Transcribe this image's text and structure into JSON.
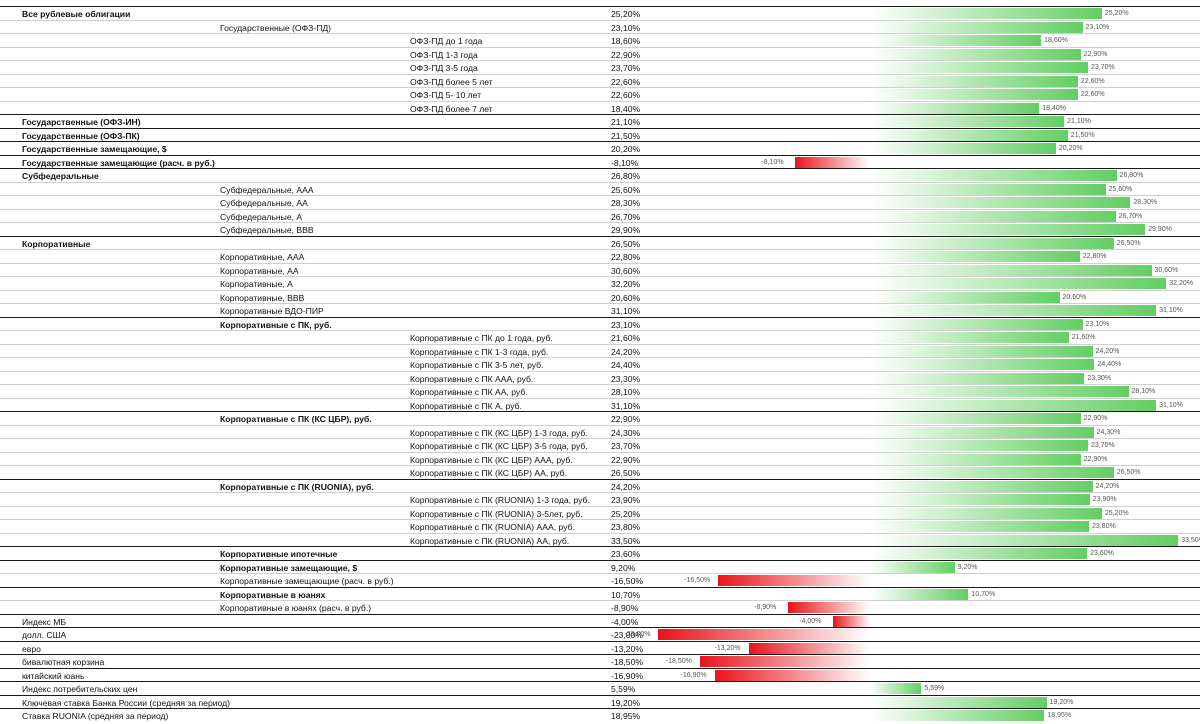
{
  "chart_data": {
    "type": "bar",
    "orientation": "horizontal",
    "value_unit": "%",
    "xlim": [
      -23.0,
      33.5
    ],
    "rows": [
      {
        "label": "Все рублевые облигации",
        "value": 25.2,
        "display": "25,20%",
        "level": 0,
        "bold": true
      },
      {
        "label": "Государственные (ОФЗ-ПД)",
        "value": 23.1,
        "display": "23,10%",
        "level": 1,
        "bold": false
      },
      {
        "label": "ОФЗ-ПД до 1 года",
        "value": 18.6,
        "display": "18,60%",
        "level": 2,
        "bold": false
      },
      {
        "label": "ОФЗ-ПД 1-3 года",
        "value": 22.9,
        "display": "22,90%",
        "level": 2,
        "bold": false
      },
      {
        "label": "ОФЗ-ПД 3-5 года",
        "value": 23.7,
        "display": "23,70%",
        "level": 2,
        "bold": false
      },
      {
        "label": "ОФЗ-ПД более 5 лет",
        "value": 22.6,
        "display": "22,60%",
        "level": 2,
        "bold": false
      },
      {
        "label": "ОФЗ-ПД 5- 10 лет",
        "value": 22.6,
        "display": "22,60%",
        "level": 2,
        "bold": false
      },
      {
        "label": "ОФЗ-ПД более 7 лет",
        "value": 18.4,
        "display": "18,40%",
        "level": 2,
        "bold": false
      },
      {
        "label": "Государственные (ОФЗ-ИН)",
        "value": 21.1,
        "display": "21,10%",
        "level": 0,
        "bold": true
      },
      {
        "label": "Государственные (ОФЗ-ПК)",
        "value": 21.5,
        "display": "21,50%",
        "level": 0,
        "bold": true
      },
      {
        "label": "Государственные замещающие, $",
        "value": 20.2,
        "display": "20,20%",
        "level": 0,
        "bold": true
      },
      {
        "label": "Государственные замещающие (расч. в руб.)",
        "value": -8.1,
        "display": "-8,10%",
        "level": 0,
        "bold": true
      },
      {
        "label": "Субфедеральные",
        "value": 26.8,
        "display": "26,80%",
        "level": 0,
        "bold": true
      },
      {
        "label": "Субфедеральные, AAA",
        "value": 25.6,
        "display": "25,60%",
        "level": 1,
        "bold": false
      },
      {
        "label": "Субфедеральные, AA",
        "value": 28.3,
        "display": "28,30%",
        "level": 1,
        "bold": false
      },
      {
        "label": "Субфедеральные, A",
        "value": 26.7,
        "display": "26,70%",
        "level": 1,
        "bold": false
      },
      {
        "label": "Субфедеральные, BBB",
        "value": 29.9,
        "display": "29,90%",
        "level": 1,
        "bold": false
      },
      {
        "label": "Корпоративные",
        "value": 26.5,
        "display": "26,50%",
        "level": 0,
        "bold": true
      },
      {
        "label": "Корпоративные, AAA",
        "value": 22.8,
        "display": "22,80%",
        "level": 1,
        "bold": false
      },
      {
        "label": "Корпоративные, AA",
        "value": 30.6,
        "display": "30,60%",
        "level": 1,
        "bold": false
      },
      {
        "label": "Корпоративные, A",
        "value": 32.2,
        "display": "32,20%",
        "level": 1,
        "bold": false
      },
      {
        "label": "Корпоративные, BBB",
        "value": 20.6,
        "display": "20,60%",
        "level": 1,
        "bold": false
      },
      {
        "label": "Корпоративные ВДО-ПИР",
        "value": 31.1,
        "display": "31,10%",
        "level": 1,
        "bold": false
      },
      {
        "label": "Корпоративные с ПК, руб.",
        "value": 23.1,
        "display": "23,10%",
        "level": 1,
        "bold": true
      },
      {
        "label": "Корпоративные с ПК до 1 года, руб.",
        "value": 21.6,
        "display": "21,60%",
        "level": 2,
        "bold": false
      },
      {
        "label": "Корпоративные с ПК 1-3 года, руб.",
        "value": 24.2,
        "display": "24,20%",
        "level": 2,
        "bold": false
      },
      {
        "label": "Корпоративные с ПК 3-5 лет, руб.",
        "value": 24.4,
        "display": "24,40%",
        "level": 2,
        "bold": false
      },
      {
        "label": "Корпоративные с ПК AAA, руб.",
        "value": 23.3,
        "display": "23,30%",
        "level": 2,
        "bold": false
      },
      {
        "label": "Корпоративные с ПК AA, руб.",
        "value": 28.1,
        "display": "28,10%",
        "level": 2,
        "bold": false
      },
      {
        "label": "Корпоративные с ПК A, руб.",
        "value": 31.1,
        "display": "31,10%",
        "level": 2,
        "bold": false
      },
      {
        "label": "Корпоративные с ПК (КС ЦБР), руб.",
        "value": 22.9,
        "display": "22,90%",
        "level": 1,
        "bold": true
      },
      {
        "label": "Корпоративные с ПК (КС ЦБР) 1-3 года, руб.",
        "value": 24.3,
        "display": "24,30%",
        "level": 2,
        "bold": false
      },
      {
        "label": "Корпоративные с ПК (КС ЦБР) 3-5 года, руб.",
        "value": 23.7,
        "display": "23,70%",
        "level": 2,
        "bold": false
      },
      {
        "label": "Корпоративные с ПК (КС ЦБР) AAA, руб.",
        "value": 22.9,
        "display": "22,90%",
        "level": 2,
        "bold": false
      },
      {
        "label": "Корпоративные с ПК (КС ЦБР) AA, руб.",
        "value": 26.5,
        "display": "26,50%",
        "level": 2,
        "bold": false
      },
      {
        "label": "Корпоративные с ПК (RUONIA), руб.",
        "value": 24.2,
        "display": "24,20%",
        "level": 1,
        "bold": true
      },
      {
        "label": "Корпоративные с ПК (RUONIA) 1-3 года, руб.",
        "value": 23.9,
        "display": "23,90%",
        "level": 2,
        "bold": false
      },
      {
        "label": "Корпоративные с ПК (RUONIA) 3-5лет, руб.",
        "value": 25.2,
        "display": "25,20%",
        "level": 2,
        "bold": false
      },
      {
        "label": "Корпоративные с ПК (RUONIA) AAA, руб.",
        "value": 23.8,
        "display": "23,80%",
        "level": 2,
        "bold": false
      },
      {
        "label": "Корпоративные с ПК (RUONIA) AA, руб.",
        "value": 33.5,
        "display": "33,50%",
        "level": 2,
        "bold": false
      },
      {
        "label": "Корпоративные ипотечные",
        "value": 23.6,
        "display": "23,60%",
        "level": 1,
        "bold": true
      },
      {
        "label": "Корпоративные замещающие, $",
        "value": 9.2,
        "display": "9,20%",
        "level": 1,
        "bold": true
      },
      {
        "label": "Корпоративные замещающие (расч. в руб.)",
        "value": -16.5,
        "display": "-16,50%",
        "level": 1,
        "bold": false
      },
      {
        "label": "Корпоративные в юанях",
        "value": 10.7,
        "display": "10,70%",
        "level": 1,
        "bold": true
      },
      {
        "label": "Корпоративные в юанях (расч. в руб.)",
        "value": -8.9,
        "display": "-8,90%",
        "level": 1,
        "bold": false
      },
      {
        "label": "Индекс МБ",
        "value": -4.0,
        "display": "-4,00%",
        "level": 0,
        "bold": false
      },
      {
        "label": "долл. США",
        "value": -23.0,
        "display": "-23,00%",
        "level": 0,
        "bold": false
      },
      {
        "label": "евро",
        "value": -13.2,
        "display": "-13,20%",
        "level": 0,
        "bold": false
      },
      {
        "label": "бивалютная корзина",
        "value": -18.5,
        "display": "-18,50%",
        "level": 0,
        "bold": false
      },
      {
        "label": "китайский юань",
        "value": -16.9,
        "display": "-16,90%",
        "level": 0,
        "bold": false
      },
      {
        "label": "Индекс потребительских цен",
        "value": 5.59,
        "display": "5,59%",
        "level": 0,
        "bold": false
      },
      {
        "label": "Ключевая ставка Банка России (средняя за период)",
        "value": 19.2,
        "display": "19,20%",
        "level": 0,
        "bold": false
      },
      {
        "label": "Ставка RUONIA (средняя за период)",
        "value": 18.95,
        "display": "18,95%",
        "level": 0,
        "bold": false
      }
    ],
    "colors": {
      "positive": "#63ce63",
      "negative": "#e8141b"
    }
  }
}
